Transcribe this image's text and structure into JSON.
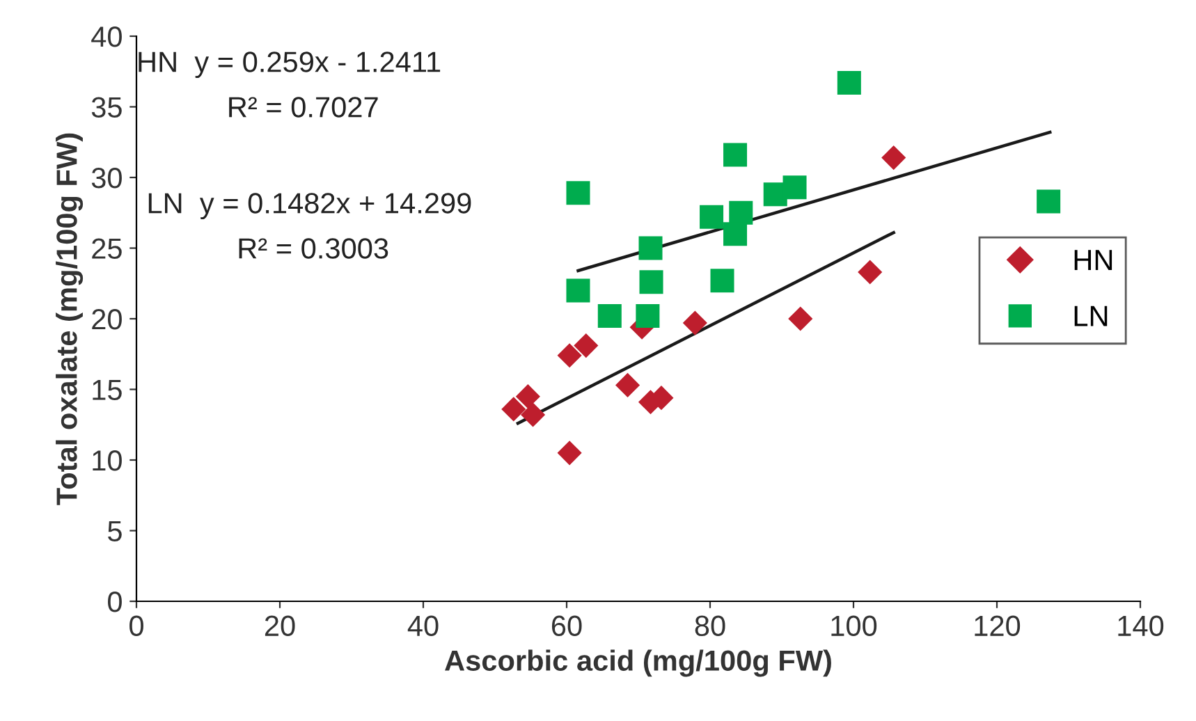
{
  "chart_data": {
    "type": "scatter",
    "xlabel": "Ascorbic acid (mg/100g FW)",
    "ylabel": "Total oxalate (mg/100g FW)",
    "xlim": [
      0,
      140
    ],
    "xticks": [
      0,
      20,
      40,
      60,
      80,
      100,
      120,
      140
    ],
    "ylim": [
      0,
      40
    ],
    "yticks": [
      0,
      5,
      10,
      15,
      20,
      25,
      30,
      35,
      40
    ],
    "grid": false,
    "legend": "right",
    "series": [
      {
        "name": "HN",
        "color": "#be1e2d",
        "marker": "diamond",
        "x": [
          52.6,
          54.6,
          55.3,
          60.4,
          60.4,
          62.7,
          70.5,
          68.5,
          71.7,
          73.2,
          77.9,
          92.6,
          102.3,
          105.6
        ],
        "values": [
          13.6,
          14.5,
          13.2,
          10.5,
          17.4,
          18.1,
          19.4,
          15.3,
          14.1,
          14.4,
          19.7,
          20.0,
          23.3,
          31.4
        ]
      },
      {
        "name": "LN",
        "color": "#00ac4e",
        "marker": "square",
        "x": [
          99.4,
          83.5,
          61.6,
          127.2,
          89.1,
          91.8,
          80.2,
          84.3,
          83.5,
          71.7,
          71.8,
          81.7,
          61.6,
          66.0,
          71.3
        ],
        "values": [
          36.7,
          31.6,
          28.9,
          28.3,
          28.8,
          29.3,
          27.2,
          27.5,
          26.0,
          25.0,
          22.6,
          22.7,
          22.0,
          20.2,
          20.2
        ]
      },
      {
        "type": "line",
        "color": "#1a1a1a",
        "marker": "none",
        "x": [
          53.2,
          105.6
        ],
        "values": [
          12.6,
          26.1
        ]
      },
      {
        "type": "line",
        "color": "#1a1a1a",
        "marker": "none",
        "x": [
          61.6,
          127.4
        ],
        "values": [
          23.4,
          33.2
        ]
      }
    ],
    "annotations": [
      "HN  y = 0.259x - 1.2411",
      "R² = 0.7027",
      "LN  y = 0.1482x + 14.299",
      "R² = 0.3003"
    ]
  }
}
